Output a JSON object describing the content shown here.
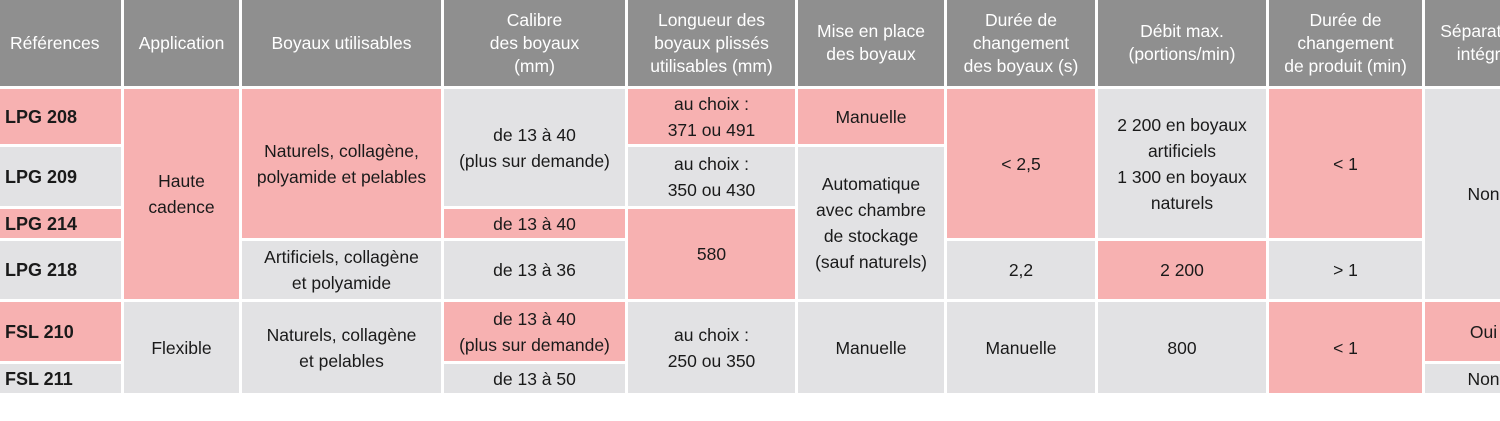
{
  "headers": [
    [
      "Références"
    ],
    [
      "Application"
    ],
    [
      "Boyaux utilisables"
    ],
    [
      "Calibre",
      "des boyaux",
      "(mm)"
    ],
    [
      "Longueur des",
      "boyaux plissés",
      "utilisables (mm)"
    ],
    [
      "Mise en place",
      "des boyaux"
    ],
    [
      "Durée de",
      "changement",
      "des boyaux (s)"
    ],
    [
      "Débit max.",
      "(portions/min)"
    ],
    [
      "Durée de",
      "changement",
      "de produit (min)"
    ],
    [
      "Séparateur",
      "intégré"
    ]
  ],
  "refs": [
    "LPG 208",
    "LPG 209",
    "LPG 214",
    "LPG 218",
    "FSL 210",
    "FSL 211"
  ],
  "cells": {
    "app_haute": [
      "Haute",
      "cadence"
    ],
    "app_flexible": [
      "Flexible"
    ],
    "boyaux_naturels_polyamide": [
      "Naturels, collagène,",
      "polyamide et pelables"
    ],
    "boyaux_artificiels": [
      "Artificiels, collagène",
      "et polyamide"
    ],
    "boyaux_naturels_pelables": [
      "Naturels, collagène",
      "et pelables"
    ],
    "calibre_13_40_demande": [
      "de 13 à 40",
      "(plus sur demande)"
    ],
    "calibre_13_40": [
      "de 13 à 40"
    ],
    "calibre_13_36": [
      "de 13 à 36"
    ],
    "calibre_13_40_demande_fsl": [
      "de 13 à 40",
      "(plus sur demande)"
    ],
    "calibre_13_50": [
      "de 13 à 50"
    ],
    "longueur_371_491": [
      "au choix :",
      "371 ou 491"
    ],
    "longueur_350_430": [
      "au choix :",
      "350 ou 430"
    ],
    "longueur_580": [
      "580"
    ],
    "longueur_250_350": [
      "au choix :",
      "250 ou 350"
    ],
    "mise_manuelle": [
      "Manuelle"
    ],
    "mise_auto": [
      "Automatique",
      "avec chambre",
      "de stockage",
      "(sauf naturels)"
    ],
    "mise_manuelle_fsl": [
      "Manuelle"
    ],
    "duree_boyaux_25": [
      "< 2,5"
    ],
    "duree_boyaux_22": [
      "2,2"
    ],
    "duree_boyaux_manuelle": [
      "Manuelle"
    ],
    "debit_2200_mix": [
      "2 200 en boyaux",
      "artificiels",
      "1 300 en boyaux",
      "naturels"
    ],
    "debit_2200": [
      "2 200"
    ],
    "debit_800": [
      "800"
    ],
    "duree_produit_lt1": [
      "< 1"
    ],
    "duree_produit_gt1": [
      "> 1"
    ],
    "duree_produit_lt1_fsl": [
      "< 1"
    ],
    "separateur_non": [
      "Non"
    ],
    "separateur_oui": [
      "Oui"
    ],
    "separateur_non_fsl": [
      "Non"
    ]
  },
  "colors": {
    "header": "#8f8f8f",
    "gray": "#e2e2e4",
    "pink": "#f7b1b1"
  }
}
